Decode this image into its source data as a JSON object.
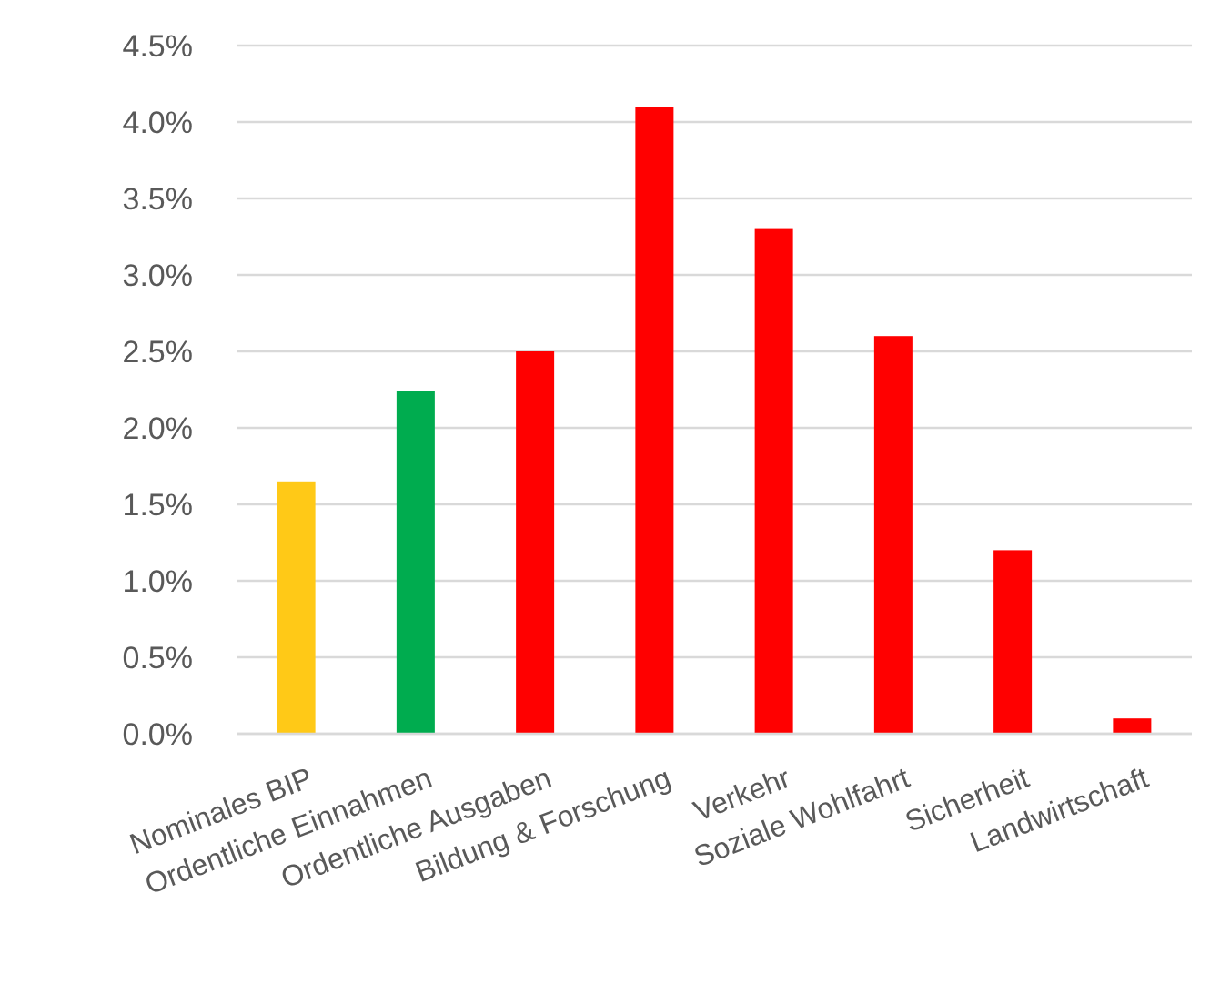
{
  "chart_data": {
    "type": "bar",
    "categories": [
      "Nominales BIP",
      "Ordentliche Einnahmen",
      "Ordentliche Ausgaben",
      "Bildung & Forschung",
      "Verkehr",
      "Soziale Wohlfahrt",
      "Sicherheit",
      "Landwirtschaft"
    ],
    "values": [
      1.65,
      2.24,
      2.5,
      4.1,
      3.3,
      2.6,
      1.2,
      0.1
    ],
    "colors": [
      "#ffc917",
      "#00ac4f",
      "#ff0000",
      "#ff0000",
      "#ff0000",
      "#ff0000",
      "#ff0000",
      "#ff0000"
    ],
    "ylim": [
      0,
      4.5
    ],
    "yticks": [
      {
        "value": 0,
        "label": "0.0%"
      },
      {
        "value": 0.5,
        "label": "0.5%"
      },
      {
        "value": 1,
        "label": "1.0%"
      },
      {
        "value": 1.5,
        "label": "1.5%"
      },
      {
        "value": 2,
        "label": "2.0%"
      },
      {
        "value": 2.5,
        "label": "2.5%"
      },
      {
        "value": 3,
        "label": "3.0%"
      },
      {
        "value": 3.5,
        "label": "3.5%"
      },
      {
        "value": 4,
        "label": "4.0%"
      },
      {
        "value": 4.5,
        "label": "4.5%"
      }
    ],
    "grid": "y"
  }
}
